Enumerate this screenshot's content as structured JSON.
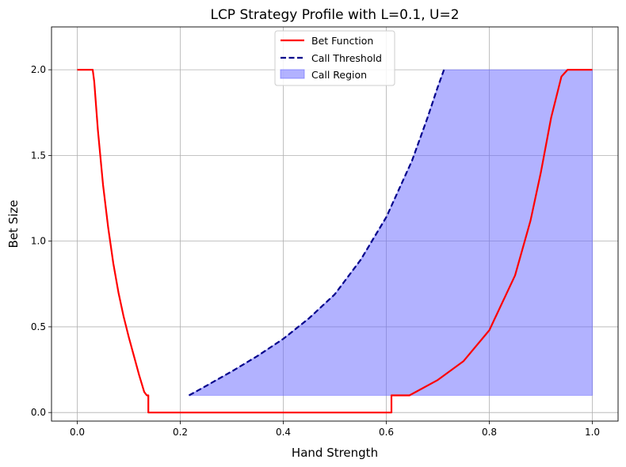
{
  "chart_data": {
    "type": "line",
    "title": "LCP Strategy Profile with L=0.1, U=2",
    "xlabel": "Hand Strength",
    "ylabel": "Bet Size",
    "xlim": [
      -0.05,
      1.05
    ],
    "ylim": [
      -0.05,
      2.25
    ],
    "xticks": [
      0.0,
      0.2,
      0.4,
      0.6,
      0.8,
      1.0
    ],
    "xtick_labels": [
      "0.0",
      "0.2",
      "0.4",
      "0.6",
      "0.8",
      "1.0"
    ],
    "yticks": [
      0.0,
      0.5,
      1.0,
      1.5,
      2.0
    ],
    "ytick_labels": [
      "0.0",
      "0.5",
      "1.0",
      "1.5",
      "2.0"
    ],
    "grid": true,
    "legend_position": "top-center",
    "series": [
      {
        "name": "Bet Function",
        "style": "solid",
        "color": "#ff0000",
        "x": [
          0.0,
          0.03,
          0.033,
          0.04,
          0.05,
          0.06,
          0.07,
          0.08,
          0.09,
          0.1,
          0.11,
          0.12,
          0.13,
          0.135,
          0.135,
          0.138,
          0.138,
          0.3,
          0.5,
          0.61,
          0.61,
          0.645,
          0.7,
          0.75,
          0.8,
          0.85,
          0.88,
          0.9,
          0.92,
          0.94,
          0.952,
          0.952,
          1.0
        ],
        "y": [
          2.0,
          2.0,
          1.93,
          1.65,
          1.33,
          1.08,
          0.87,
          0.7,
          0.56,
          0.44,
          0.33,
          0.22,
          0.12,
          0.1,
          0.1,
          0.1,
          0.0,
          0.0,
          0.0,
          0.0,
          0.1,
          0.1,
          0.19,
          0.3,
          0.48,
          0.8,
          1.12,
          1.4,
          1.72,
          1.96,
          2.0,
          2.0,
          2.0
        ]
      },
      {
        "name": "Call Threshold",
        "style": "dashed",
        "color": "#00008b",
        "x": [
          0.217,
          0.25,
          0.3,
          0.35,
          0.4,
          0.45,
          0.5,
          0.55,
          0.6,
          0.65,
          0.68,
          0.7,
          0.712
        ],
        "y": [
          0.1,
          0.155,
          0.24,
          0.33,
          0.43,
          0.55,
          0.69,
          0.89,
          1.14,
          1.47,
          1.72,
          1.9,
          2.0
        ]
      }
    ],
    "fill_region": {
      "name": "Call Region",
      "color": "#6666ff",
      "opacity": 0.5,
      "x": [
        0.217,
        0.25,
        0.3,
        0.35,
        0.4,
        0.45,
        0.5,
        0.55,
        0.6,
        0.65,
        0.68,
        0.7,
        0.712,
        1.0,
        1.0
      ],
      "y": [
        0.1,
        0.155,
        0.24,
        0.33,
        0.43,
        0.55,
        0.69,
        0.89,
        1.14,
        1.47,
        1.72,
        1.9,
        2.0,
        2.0,
        0.1
      ]
    }
  }
}
